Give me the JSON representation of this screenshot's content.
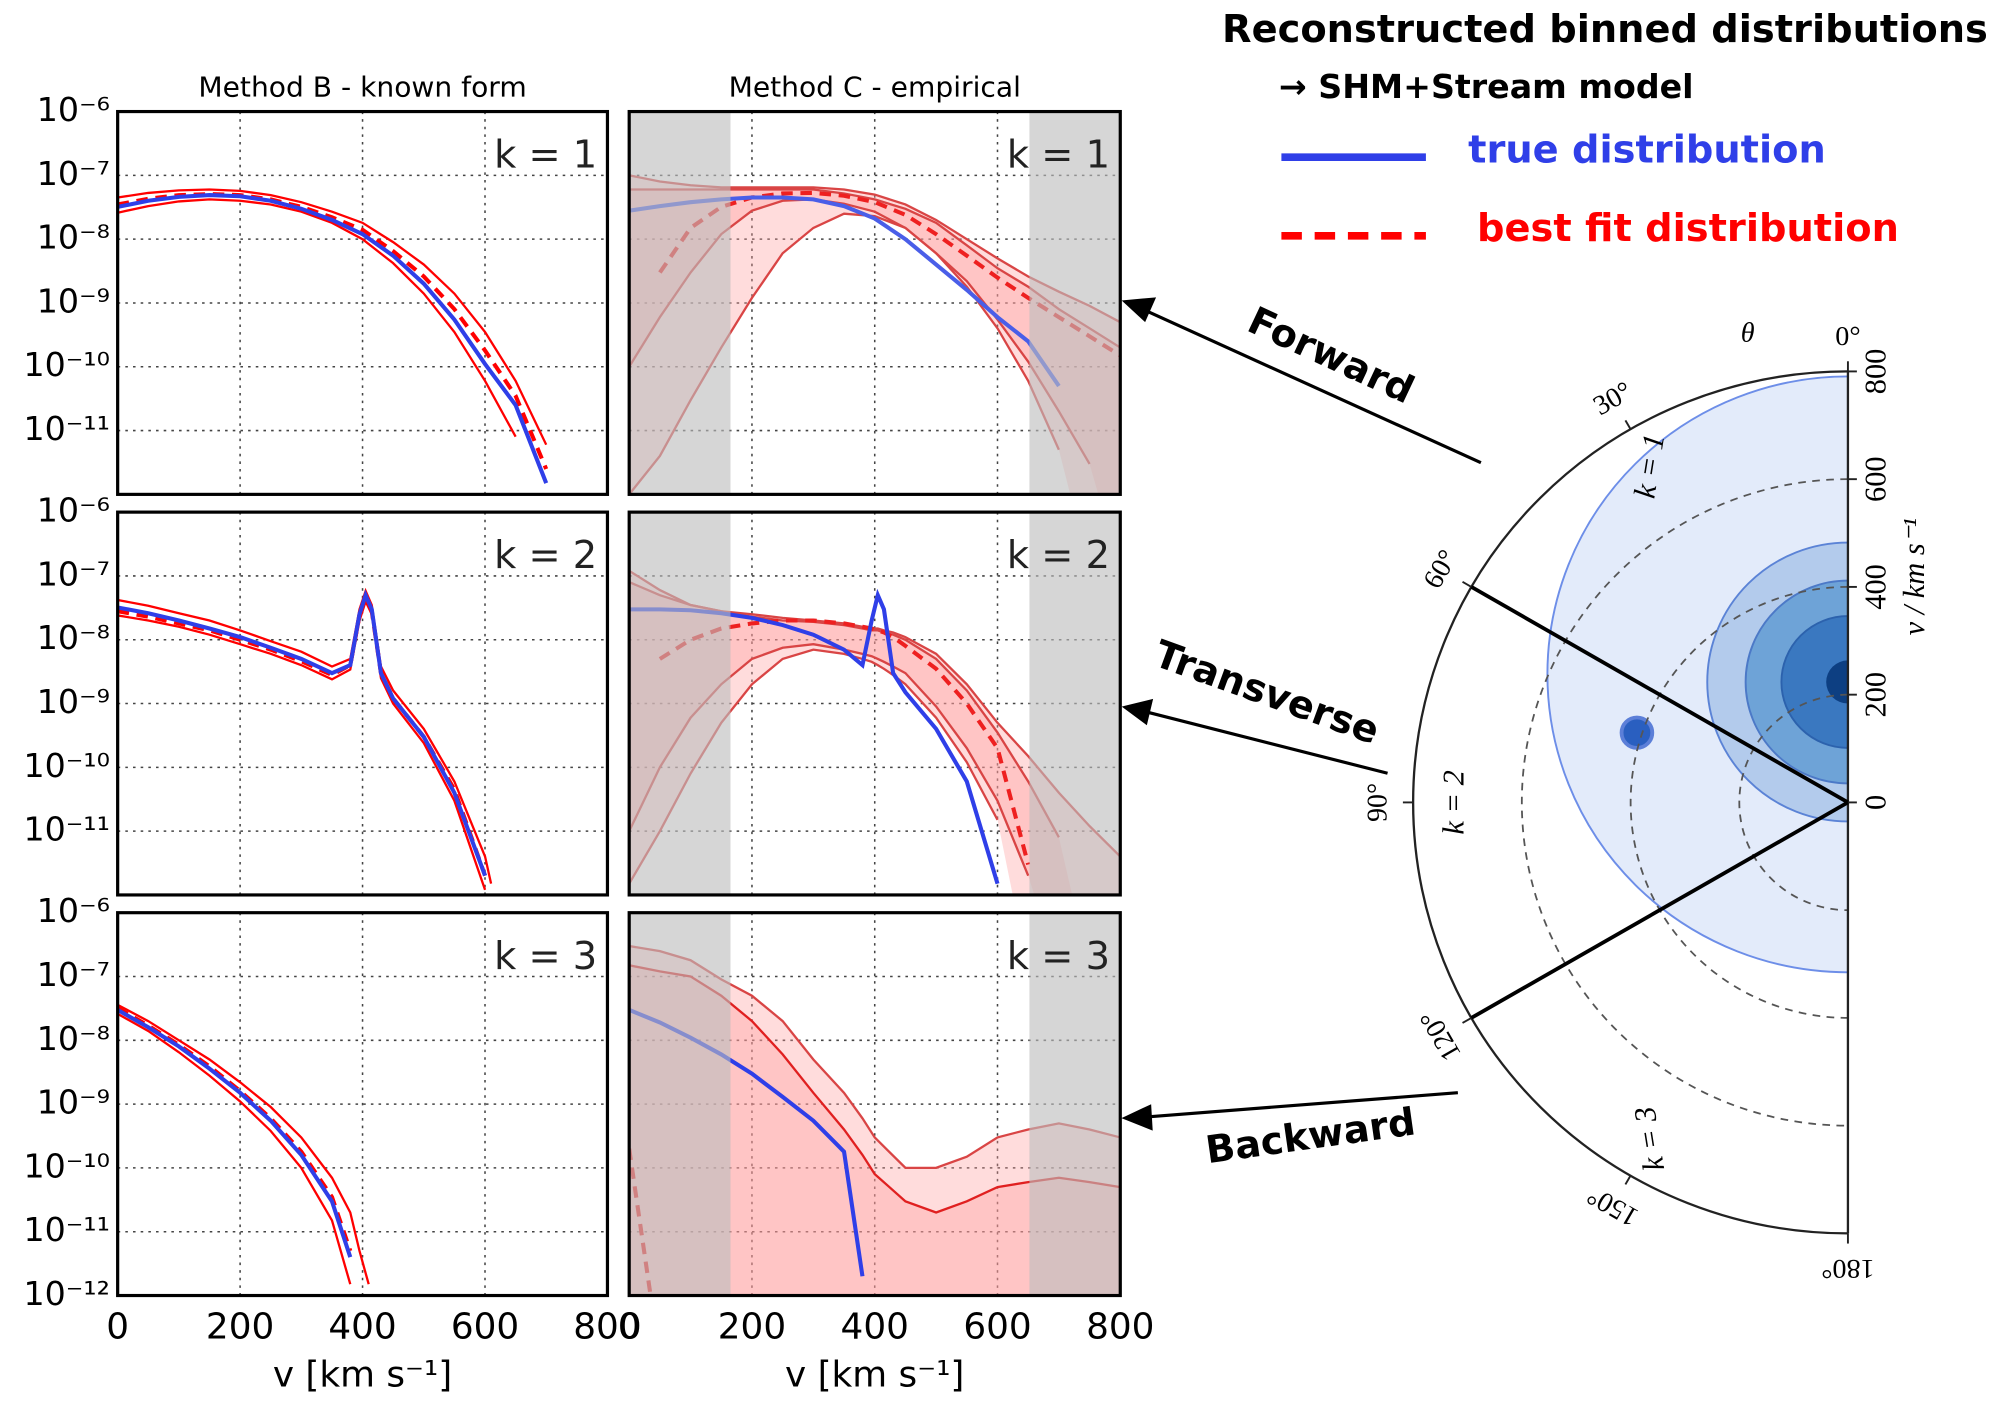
{
  "legend": {
    "title": "Reconstructed binned distributions",
    "subtitle": "→ SHM+Stream model"
  },
  "annotations": [
    "Forward",
    "Transverse",
    "Backward"
  ],
  "chart_data": [
    {
      "type": "line",
      "title": "Method B - known form",
      "annotation": "k = 1",
      "log_y": true,
      "grid": true,
      "ytick_labels": true,
      "xtick_labels": false,
      "xlim": [
        0,
        800
      ],
      "xticks": [
        0,
        200,
        400,
        600,
        800
      ],
      "ylim": [
        1e-12,
        1e-06
      ],
      "yticks": [
        {
          "value": 1e-06,
          "label": "10⁻⁶"
        },
        {
          "value": 1e-07,
          "label": "10⁻⁷"
        },
        {
          "value": 1e-08,
          "label": "10⁻⁸"
        },
        {
          "value": 1e-09,
          "label": "10⁻⁹"
        },
        {
          "value": 1e-10,
          "label": "10⁻¹⁰"
        },
        {
          "value": 1e-11,
          "label": "10⁻¹¹"
        }
      ],
      "x": [
        0,
        50,
        100,
        150,
        200,
        250,
        300,
        350,
        400,
        450,
        500,
        550,
        600,
        650,
        700,
        750,
        800
      ],
      "bands": [
        {
          "color": "#ff0000",
          "upper": [
            4.5e-08,
            5.3e-08,
            5.8e-08,
            6e-08,
            5.7e-08,
            4.9e-08,
            3.8e-08,
            2.7e-08,
            1.8e-08,
            9e-09,
            4e-09,
            1.4e-09,
            3.5e-10,
            6e-11,
            6e-12,
            null,
            null
          ],
          "lower": [
            2.6e-08,
            3.3e-08,
            3.9e-08,
            4.2e-08,
            4e-08,
            3.5e-08,
            2.7e-08,
            1.8e-08,
            1e-08,
            4.2e-09,
            1.4e-09,
            3.5e-10,
            6e-11,
            8e-12,
            null,
            null,
            null
          ]
        }
      ],
      "series": [
        {
          "name": "true distribution",
          "color": "#2f3fe8",
          "values": [
            3.2e-08,
            4e-08,
            4.6e-08,
            4.9e-08,
            4.7e-08,
            4e-08,
            3e-08,
            2e-08,
            1.2e-08,
            5.5e-09,
            2e-09,
            5.5e-10,
            1.1e-10,
            2.5e-11,
            1.5e-12,
            null,
            null
          ]
        },
        {
          "name": "best fit distribution",
          "color": "#ff0000",
          "dash": true,
          "values": [
            3.5e-08,
            4.3e-08,
            4.9e-08,
            5.1e-08,
            4.9e-08,
            4.2e-08,
            3.2e-08,
            2.2e-08,
            1.4e-08,
            6.5e-09,
            2.6e-09,
            8e-10,
            1.8e-10,
            3.5e-11,
            2.5e-12,
            null,
            null
          ]
        }
      ]
    },
    {
      "type": "line",
      "title": "Method C - empirical",
      "annotation": "k = 1",
      "log_y": true,
      "grid": true,
      "ytick_labels": false,
      "xtick_labels": false,
      "xlim": [
        0,
        800
      ],
      "xticks": [
        0,
        200,
        400,
        600,
        800
      ],
      "ylim": [
        1e-12,
        1e-06
      ],
      "yticks": [
        1e-11,
        1e-10,
        1e-09,
        1e-08,
        1e-07
      ],
      "shaded_regions": [
        [
          0,
          165
        ],
        [
          652,
          800
        ]
      ],
      "x": [
        0,
        50,
        100,
        150,
        200,
        250,
        300,
        350,
        400,
        450,
        500,
        550,
        600,
        650,
        700,
        750,
        800
      ],
      "bands": [
        {
          "color": "#d94545",
          "fill": "#ff9a9a",
          "upper": [
            1e-07,
            8e-08,
            7e-08,
            6.5e-08,
            6.5e-08,
            6.5e-08,
            6.5e-08,
            6e-08,
            5e-08,
            3.5e-08,
            2e-08,
            1e-08,
            5e-09,
            2.6e-09,
            1.5e-09,
            9e-10,
            5e-10
          ],
          "lower": [
            1e-12,
            4e-12,
            3e-11,
            2e-10,
            1.2e-09,
            6e-09,
            1.5e-08,
            2.5e-08,
            2.3e-08,
            1.5e-08,
            6e-09,
            1.8e-09,
            4e-10,
            6e-11,
            5e-12,
            null,
            null
          ]
        },
        {
          "color": "#d94545",
          "fill": "#ff9a9a",
          "upper": [
            6e-08,
            6e-08,
            6e-08,
            6e-08,
            6e-08,
            6e-08,
            6e-08,
            5.2e-08,
            4.2e-08,
            3e-08,
            1.8e-08,
            8e-09,
            3.5e-09,
            1.8e-09,
            8e-10,
            4e-10,
            2e-10
          ],
          "lower": [
            1e-10,
            6e-10,
            3e-09,
            1.2e-08,
            2.8e-08,
            4e-08,
            4.2e-08,
            3.6e-08,
            2.7e-08,
            1.5e-08,
            6e-09,
            2.2e-09,
            5.5e-10,
            1.2e-10,
            2e-11,
            3e-12,
            null
          ]
        }
      ],
      "series": [
        {
          "color": "#4a5ee8",
          "values": [
            2.8e-08,
            3.3e-08,
            3.8e-08,
            4.2e-08,
            4.5e-08,
            4.5e-08,
            4.2e-08,
            3.3e-08,
            2.1e-08,
            1e-08,
            4e-09,
            1.6e-09,
            6e-10,
            2.5e-10,
            5e-11,
            null,
            null
          ]
        },
        {
          "color": "#ee2020",
          "dash": true,
          "values": [
            null,
            3e-09,
            1.5e-08,
            3.2e-08,
            4.5e-08,
            5.2e-08,
            5.3e-08,
            4.8e-08,
            3.8e-08,
            2.4e-08,
            1.2e-08,
            5.5e-09,
            2.5e-09,
            1.2e-09,
            6e-10,
            3e-10,
            1.5e-10
          ]
        }
      ]
    },
    {
      "type": "line",
      "annotation": "k = 2",
      "log_y": true,
      "grid": true,
      "ytick_labels": true,
      "xtick_labels": false,
      "xlim": [
        0,
        800
      ],
      "xticks": [
        0,
        200,
        400,
        600,
        800
      ],
      "ylim": [
        1e-12,
        1e-06
      ],
      "yticks": [
        {
          "value": 1e-06,
          "label": "10⁻⁶"
        },
        {
          "value": 1e-07,
          "label": "10⁻⁷"
        },
        {
          "value": 1e-08,
          "label": "10⁻⁸"
        },
        {
          "value": 1e-09,
          "label": "10⁻⁹"
        },
        {
          "value": 1e-10,
          "label": "10⁻¹⁰"
        },
        {
          "value": 1e-11,
          "label": "10⁻¹¹"
        }
      ],
      "x": [
        0,
        50,
        100,
        150,
        200,
        250,
        300,
        350,
        380,
        395,
        405,
        415,
        430,
        450,
        500,
        550,
        600,
        610,
        620
      ],
      "bands": [
        {
          "color": "#ff0000",
          "upper": [
            4.2e-08,
            3.4e-08,
            2.6e-08,
            2e-08,
            1.4e-08,
            9.5e-09,
            6.5e-09,
            3.8e-09,
            5e-09,
            3e-08,
            5.8e-08,
            3.5e-08,
            3.8e-09,
            1.6e-09,
            4e-10,
            6e-11,
            4e-12,
            1.5e-12,
            null
          ],
          "lower": [
            2.4e-08,
            2e-08,
            1.6e-08,
            1.2e-08,
            8.5e-09,
            6e-09,
            4e-09,
            2.4e-09,
            3.4e-09,
            2e-08,
            4e-08,
            2.5e-08,
            2.5e-09,
            1e-09,
            2.4e-10,
            3e-11,
            1.2e-12,
            null,
            null
          ]
        }
      ],
      "series": [
        {
          "color": "#2f3fe8",
          "values": [
            3.2e-08,
            2.6e-08,
            2e-08,
            1.5e-08,
            1.1e-08,
            7.5e-09,
            5e-09,
            3e-09,
            4e-09,
            2.5e-08,
            5e-08,
            3e-08,
            3e-09,
            1.2e-09,
            3e-10,
            4e-11,
            2e-12,
            null,
            null
          ]
        },
        {
          "color": "#ff0000",
          "dash": true,
          "values": [
            2.8e-08,
            2.3e-08,
            1.8e-08,
            1.4e-08,
            1e-08,
            7e-09,
            4.6e-09,
            2.8e-09,
            4e-09,
            2.4e-08,
            4.5e-08,
            2.8e-08,
            3e-09,
            1.2e-09,
            3e-10,
            4.5e-11,
            2e-12,
            null,
            null
          ]
        }
      ]
    },
    {
      "type": "line",
      "annotation": "k = 2",
      "log_y": true,
      "grid": true,
      "ytick_labels": false,
      "xtick_labels": false,
      "xlim": [
        0,
        800
      ],
      "xticks": [
        0,
        200,
        400,
        600,
        800
      ],
      "ylim": [
        1e-12,
        1e-06
      ],
      "yticks": [
        1e-11,
        1e-10,
        1e-09,
        1e-08,
        1e-07
      ],
      "shaded_regions": [
        [
          0,
          165
        ],
        [
          652,
          800
        ]
      ],
      "x": [
        0,
        50,
        100,
        150,
        200,
        250,
        300,
        350,
        380,
        395,
        405,
        415,
        430,
        450,
        500,
        550,
        600,
        650,
        700,
        750,
        800
      ],
      "bands": [
        {
          "color": "#d94545",
          "fill": "#ff9a9a",
          "upper": [
            1.2e-07,
            6e-08,
            3.5e-08,
            2.8e-08,
            2.5e-08,
            2.2e-08,
            2e-08,
            1.8e-08,
            1.6e-08,
            1.5e-08,
            1.5e-08,
            1.4e-08,
            1.3e-08,
            1.1e-08,
            6e-09,
            2e-09,
            5e-10,
            1.5e-10,
            4e-11,
            1.2e-11,
            4e-12
          ],
          "lower": [
            1.5e-12,
            1e-11,
            8e-11,
            5e-10,
            2e-09,
            5e-09,
            7e-09,
            6e-09,
            5e-09,
            4.5e-09,
            4e-09,
            3.5e-09,
            2.8e-09,
            2e-09,
            6e-10,
            1.2e-10,
            1.5e-11,
            null,
            null,
            null,
            null
          ]
        },
        {
          "color": "#d94545",
          "fill": "#ff9a9a",
          "upper": [
            8e-08,
            5e-08,
            3.5e-08,
            2.8e-08,
            2.3e-08,
            2e-08,
            1.9e-08,
            1.7e-08,
            1.5e-08,
            1.4e-08,
            1.4e-08,
            1.3e-08,
            1.2e-08,
            1e-08,
            5e-09,
            1.6e-09,
            3.5e-10,
            6e-11,
            8e-12,
            null,
            null
          ],
          "lower": [
            1e-11,
            1e-10,
            6e-10,
            2e-09,
            5e-09,
            7.5e-09,
            8.5e-09,
            7e-09,
            6e-09,
            5.5e-09,
            5e-09,
            4.5e-09,
            3.8e-09,
            3e-09,
            9e-10,
            2e-10,
            3e-11,
            2e-12,
            null,
            null,
            null
          ]
        }
      ],
      "series": [
        {
          "color": "#2f3fe8",
          "values": [
            3e-08,
            3e-08,
            2.9e-08,
            2.6e-08,
            2.2e-08,
            1.7e-08,
            1.2e-08,
            7e-09,
            4e-09,
            2e-08,
            5e-08,
            3e-08,
            3e-09,
            1.5e-09,
            4e-10,
            6e-11,
            1.5e-12,
            null,
            null,
            null,
            null
          ]
        },
        {
          "color": "#ee2020",
          "dash": true,
          "values": [
            null,
            5e-09,
            1e-08,
            1.5e-08,
            1.8e-08,
            2e-08,
            2e-08,
            1.8e-08,
            1.6e-08,
            1.5e-08,
            1.4e-08,
            1.3e-08,
            1.1e-08,
            8e-09,
            3.5e-09,
            1e-09,
            2e-10,
            3e-12,
            null,
            null,
            null
          ]
        }
      ]
    },
    {
      "type": "line",
      "annotation": "k = 3",
      "log_y": true,
      "grid": true,
      "ytick_labels": true,
      "xtick_labels": true,
      "xlabel": "v [km s⁻¹]",
      "xlim": [
        0,
        800
      ],
      "xticks": [
        0,
        200,
        400,
        600,
        800
      ],
      "ylim": [
        1e-12,
        1e-06
      ],
      "yticks": [
        {
          "value": 1e-06,
          "label": "10⁻⁶"
        },
        {
          "value": 1e-07,
          "label": "10⁻⁷"
        },
        {
          "value": 1e-08,
          "label": "10⁻⁸"
        },
        {
          "value": 1e-09,
          "label": "10⁻⁹"
        },
        {
          "value": 1e-10,
          "label": "10⁻¹⁰"
        },
        {
          "value": 1e-11,
          "label": "10⁻¹¹"
        },
        {
          "value": 1e-12,
          "label": "10⁻¹²"
        }
      ],
      "x": [
        0,
        50,
        100,
        150,
        200,
        250,
        300,
        350,
        380,
        395,
        410
      ],
      "bands": [
        {
          "color": "#ff0000",
          "upper": [
            3.6e-08,
            2e-08,
            1e-08,
            5e-09,
            2.2e-09,
            9e-10,
            3e-10,
            7e-11,
            2e-11,
            5e-12,
            1.5e-12
          ],
          "lower": [
            2.6e-08,
            1.4e-08,
            6.5e-09,
            2.8e-09,
            1.1e-09,
            3.8e-10,
            1e-10,
            1.5e-11,
            1.5e-12,
            null,
            null
          ]
        }
      ],
      "series": [
        {
          "color": "#2f3fe8",
          "values": [
            3e-08,
            1.6e-08,
            8e-09,
            3.6e-09,
            1.5e-09,
            5.5e-10,
            1.6e-10,
            3e-11,
            4e-12,
            null,
            null
          ]
        },
        {
          "color": "#ff0000",
          "dash": true,
          "values": [
            3.2e-08,
            1.7e-08,
            8.5e-09,
            3.9e-09,
            1.6e-09,
            6e-10,
            1.8e-10,
            3.5e-11,
            5e-12,
            null,
            null
          ]
        }
      ]
    },
    {
      "type": "line",
      "annotation": "k = 3",
      "log_y": true,
      "grid": true,
      "ytick_labels": false,
      "xtick_labels": true,
      "xlabel": "v [km s⁻¹]",
      "xlim": [
        0,
        800
      ],
      "xticks": [
        0,
        200,
        400,
        600,
        800
      ],
      "ylim": [
        1e-12,
        1e-06
      ],
      "yticks": [
        1e-11,
        1e-10,
        1e-09,
        1e-08,
        1e-07
      ],
      "shaded_regions": [
        [
          0,
          165
        ],
        [
          652,
          800
        ]
      ],
      "x": [
        0,
        50,
        100,
        150,
        200,
        250,
        300,
        350,
        380,
        400,
        450,
        500,
        550,
        600,
        650,
        700,
        750,
        800
      ],
      "bands": [
        {
          "color": "#d94545",
          "fill": "#ff9a9a",
          "upper": [
            3e-07,
            2.5e-07,
            1.8e-07,
            9e-08,
            5e-08,
            2e-08,
            5e-09,
            1.5e-09,
            6e-10,
            3e-10,
            1e-10,
            1e-10,
            1.5e-10,
            3e-10,
            4e-10,
            5e-10,
            4e-10,
            3e-10
          ]
        },
        {
          "color": "#e02020",
          "fill": "#ff9a9a",
          "upper": [
            1.5e-07,
            1.2e-07,
            1e-07,
            5e-08,
            2e-08,
            6e-09,
            1.5e-09,
            4e-10,
            1.6e-10,
            8e-11,
            3e-11,
            2e-11,
            3e-11,
            5e-11,
            6e-11,
            7e-11,
            6e-11,
            5e-11
          ]
        }
      ],
      "series": [
        {
          "color": "#2f3fe8",
          "values": [
            3e-08,
            1.9e-08,
            1.1e-08,
            6e-09,
            3e-09,
            1.3e-09,
            5.5e-10,
            1.8e-10,
            2e-12,
            null,
            null,
            null,
            null,
            null,
            null,
            null,
            null,
            null
          ]
        },
        {
          "color": "#ee2020",
          "dash": true,
          "values": [
            2e-10,
            1e-13,
            null,
            null,
            null,
            null,
            null,
            null,
            null,
            null,
            null,
            null,
            null,
            null,
            null,
            null,
            null,
            null
          ]
        }
      ]
    },
    {
      "type": "polar",
      "rlim": [
        0,
        800
      ],
      "rticks": [
        0,
        200,
        400,
        600,
        800
      ],
      "thetalim": [
        0,
        180
      ],
      "thetaticks": [
        {
          "value": 0,
          "label": "0°"
        },
        {
          "value": 30,
          "label": "30°"
        },
        {
          "value": 60,
          "label": "60°"
        },
        {
          "value": 90,
          "label": "90°"
        },
        {
          "value": 120,
          "label": "120°"
        },
        {
          "value": 150,
          "label": "150°"
        },
        {
          "value": 180,
          "label": "180°"
        }
      ],
      "sector_edges": [
        60,
        120
      ],
      "sector_labels": [
        "k = 1",
        "k = 2",
        "k = 3"
      ],
      "rlabel": "v / km s⁻¹",
      "theta_label": "θ",
      "grid": true
    }
  ]
}
